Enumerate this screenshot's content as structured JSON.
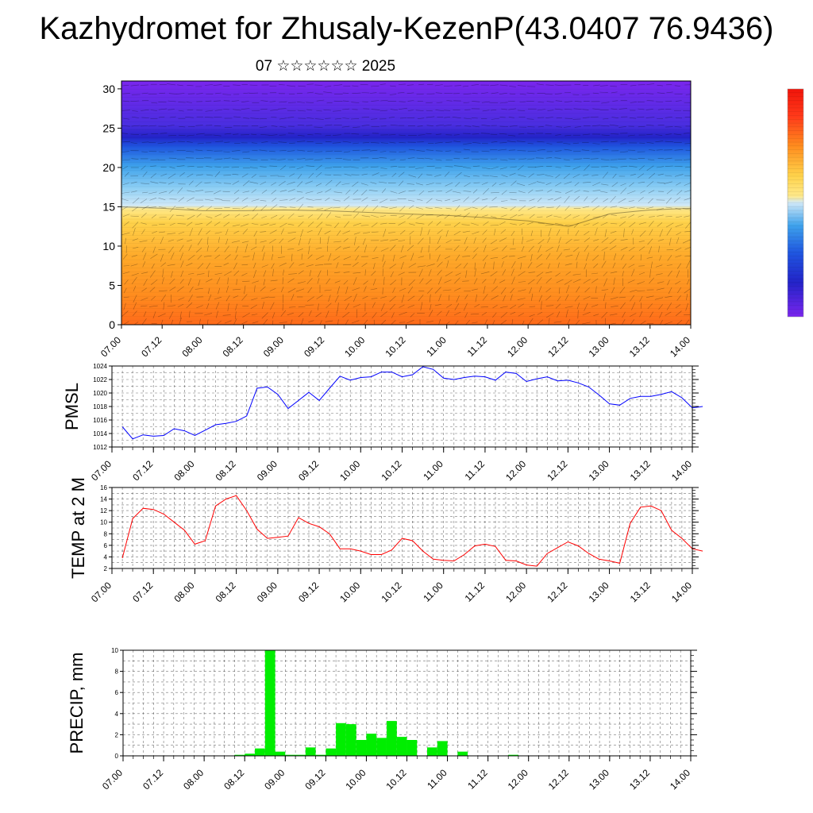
{
  "page": {
    "title": "Kazhydromet for Zhusaly-KezenP(43.0407 76.9436)",
    "subtitle": "07 ☆☆☆☆☆☆ 2025"
  },
  "colors": {
    "pmsl_line": "#0000ff",
    "temp_line": "#ff0000",
    "precip_bar": "#00ee00",
    "colorbar_top": "#ff0000",
    "colorbar_bottom": "#8a2be2"
  },
  "chart_data": [
    {
      "id": "cross_section",
      "type": "heatmap",
      "title": "",
      "xlabel": "",
      "ylabel": "",
      "x_tick_labels": [
        "07.00",
        "07.12",
        "08.00",
        "08.12",
        "09.00",
        "09.12",
        "10.00",
        "10.12",
        "11.00",
        "11.12",
        "12.00",
        "12.12",
        "13.00",
        "13.12",
        "14.00"
      ],
      "y_tick_labels": [
        "0",
        "5",
        "10",
        "15",
        "20",
        "25",
        "30"
      ],
      "ylim": [
        0,
        31
      ],
      "xlim": [
        0,
        14
      ],
      "boundary_level_by_tick": [
        15,
        14.8,
        14.5,
        14.5,
        14.6,
        14.5,
        14.3,
        14.1,
        13.9,
        13.6,
        13.2,
        12.5,
        14.1,
        14.6,
        14.8
      ],
      "tropopause_level": 24,
      "legend": "colorbar, right, unlabeled"
    },
    {
      "id": "pmsl",
      "type": "line",
      "ylabel": "PMSL",
      "ylim": [
        1012,
        1024
      ],
      "y_tick_labels": [
        "1012",
        "1014",
        "1016",
        "1018",
        "1020",
        "1022",
        "1024"
      ],
      "x_tick_labels": [
        "07.00",
        "07.12",
        "08.00",
        "08.12",
        "09.00",
        "09.12",
        "10.00",
        "10.12",
        "11.00",
        "11.12",
        "12.00",
        "12.12",
        "13.00",
        "13.12",
        "14.00"
      ],
      "x_start": 0.25,
      "x_step": 0.25,
      "series": [
        {
          "values": [
            1015.0,
            1013.2,
            1013.8,
            1013.6,
            1013.7,
            1014.7,
            1014.4,
            1013.7,
            1014.5,
            1015.3,
            1015.5,
            1015.8,
            1016.6,
            1020.7,
            1020.9,
            1019.8,
            1017.7,
            1018.9,
            1020.1,
            1018.9,
            1020.7,
            1022.5,
            1021.9,
            1022.3,
            1022.4,
            1023.1,
            1023.1,
            1022.4,
            1022.7,
            1023.9,
            1023.5,
            1022.2,
            1022.0,
            1022.3,
            1022.5,
            1022.4,
            1021.9,
            1023.1,
            1022.9,
            1021.7,
            1022.1,
            1022.4,
            1021.8,
            1021.9,
            1021.5,
            1020.9,
            1019.7,
            1018.4,
            1018.2,
            1019.2,
            1019.5,
            1019.5,
            1019.8,
            1020.2,
            1019.3,
            1017.8,
            1018.0
          ]
        }
      ]
    },
    {
      "id": "temp2m",
      "type": "line",
      "ylabel": "TEMP at 2 M",
      "ylim": [
        2,
        16
      ],
      "y_tick_labels": [
        "2",
        "4",
        "6",
        "8",
        "10",
        "12",
        "14",
        "16"
      ],
      "x_tick_labels": [
        "07.00",
        "07.12",
        "08.00",
        "08.12",
        "09.00",
        "09.12",
        "10.00",
        "10.12",
        "11.00",
        "11.12",
        "12.00",
        "12.12",
        "13.00",
        "13.12",
        "14.00"
      ],
      "x_start": 0.25,
      "x_step": 0.25,
      "series": [
        {
          "values": [
            3.8,
            10.6,
            12.4,
            12.2,
            11.4,
            10.0,
            8.6,
            6.2,
            6.8,
            12.8,
            14.0,
            14.6,
            12.0,
            8.8,
            7.2,
            7.4,
            7.6,
            10.8,
            9.8,
            9.2,
            8.0,
            5.4,
            5.4,
            5.0,
            4.4,
            4.4,
            5.2,
            7.2,
            6.8,
            5.0,
            3.6,
            3.4,
            3.3,
            4.4,
            5.9,
            6.2,
            5.8,
            3.4,
            3.3,
            2.6,
            2.4,
            4.6,
            5.6,
            6.6,
            5.9,
            4.6,
            3.6,
            3.3,
            2.9,
            9.8,
            12.6,
            12.8,
            12.0,
            8.6,
            7.2,
            5.4,
            5.0
          ]
        }
      ]
    },
    {
      "id": "precip",
      "type": "bar",
      "ylabel": "PRECIP, mm",
      "ylim": [
        0,
        10
      ],
      "y_tick_labels": [
        "0",
        "2",
        "4",
        "6",
        "8",
        "10"
      ],
      "x_tick_labels": [
        "07.00",
        "07.12",
        "08.00",
        "08.12",
        "09.00",
        "09.12",
        "10.00",
        "10.12",
        "11.00",
        "11.12",
        "12.00",
        "12.12",
        "13.00",
        "13.12",
        "14.00"
      ],
      "x_start": 0.0,
      "x_step": 0.25,
      "values": [
        0,
        0,
        0,
        0,
        0,
        0,
        0,
        0,
        0,
        0,
        0,
        0.1,
        0.2,
        0.7,
        10.0,
        0.4,
        0.1,
        0.1,
        0.8,
        0.1,
        0.7,
        3.1,
        3.0,
        1.5,
        2.1,
        1.7,
        3.3,
        1.8,
        1.5,
        0,
        0.8,
        1.4,
        0,
        0.4,
        0,
        0,
        0,
        0,
        0.1,
        0,
        0,
        0,
        0,
        0,
        0,
        0,
        0,
        0,
        0,
        0,
        0,
        0,
        0,
        0,
        0,
        0
      ]
    }
  ]
}
